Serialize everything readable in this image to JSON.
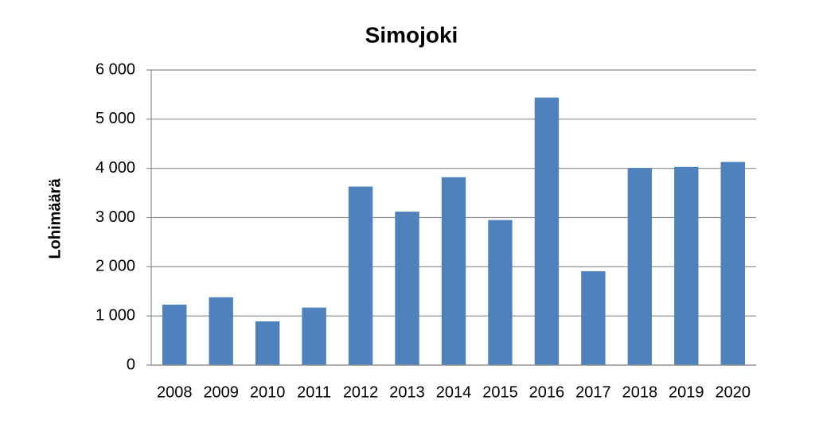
{
  "chart_data": {
    "type": "bar",
    "title": "Simojoki",
    "y_label": "Lohimäärä",
    "categories": [
      "2008",
      "2009",
      "2010",
      "2011",
      "2012",
      "2013",
      "2014",
      "2015",
      "2016",
      "2017",
      "2018",
      "2019",
      "2020"
    ],
    "values": [
      1230,
      1380,
      890,
      1170,
      3630,
      3120,
      3820,
      2950,
      5440,
      1910,
      4010,
      4030,
      4130
    ],
    "color": "#4f81bd",
    "ylim": [
      0,
      6000
    ],
    "yticks": [
      0,
      {
        "value": 1000,
        "label": "1 000"
      },
      {
        "value": 2000,
        "label": "2 000"
      },
      {
        "value": 3000,
        "label": "3 000"
      },
      {
        "value": 4000,
        "label": "4 000"
      },
      {
        "value": 5000,
        "label": "5 000"
      },
      {
        "value": 6000,
        "label": "6 000"
      }
    ],
    "grid": true
  }
}
